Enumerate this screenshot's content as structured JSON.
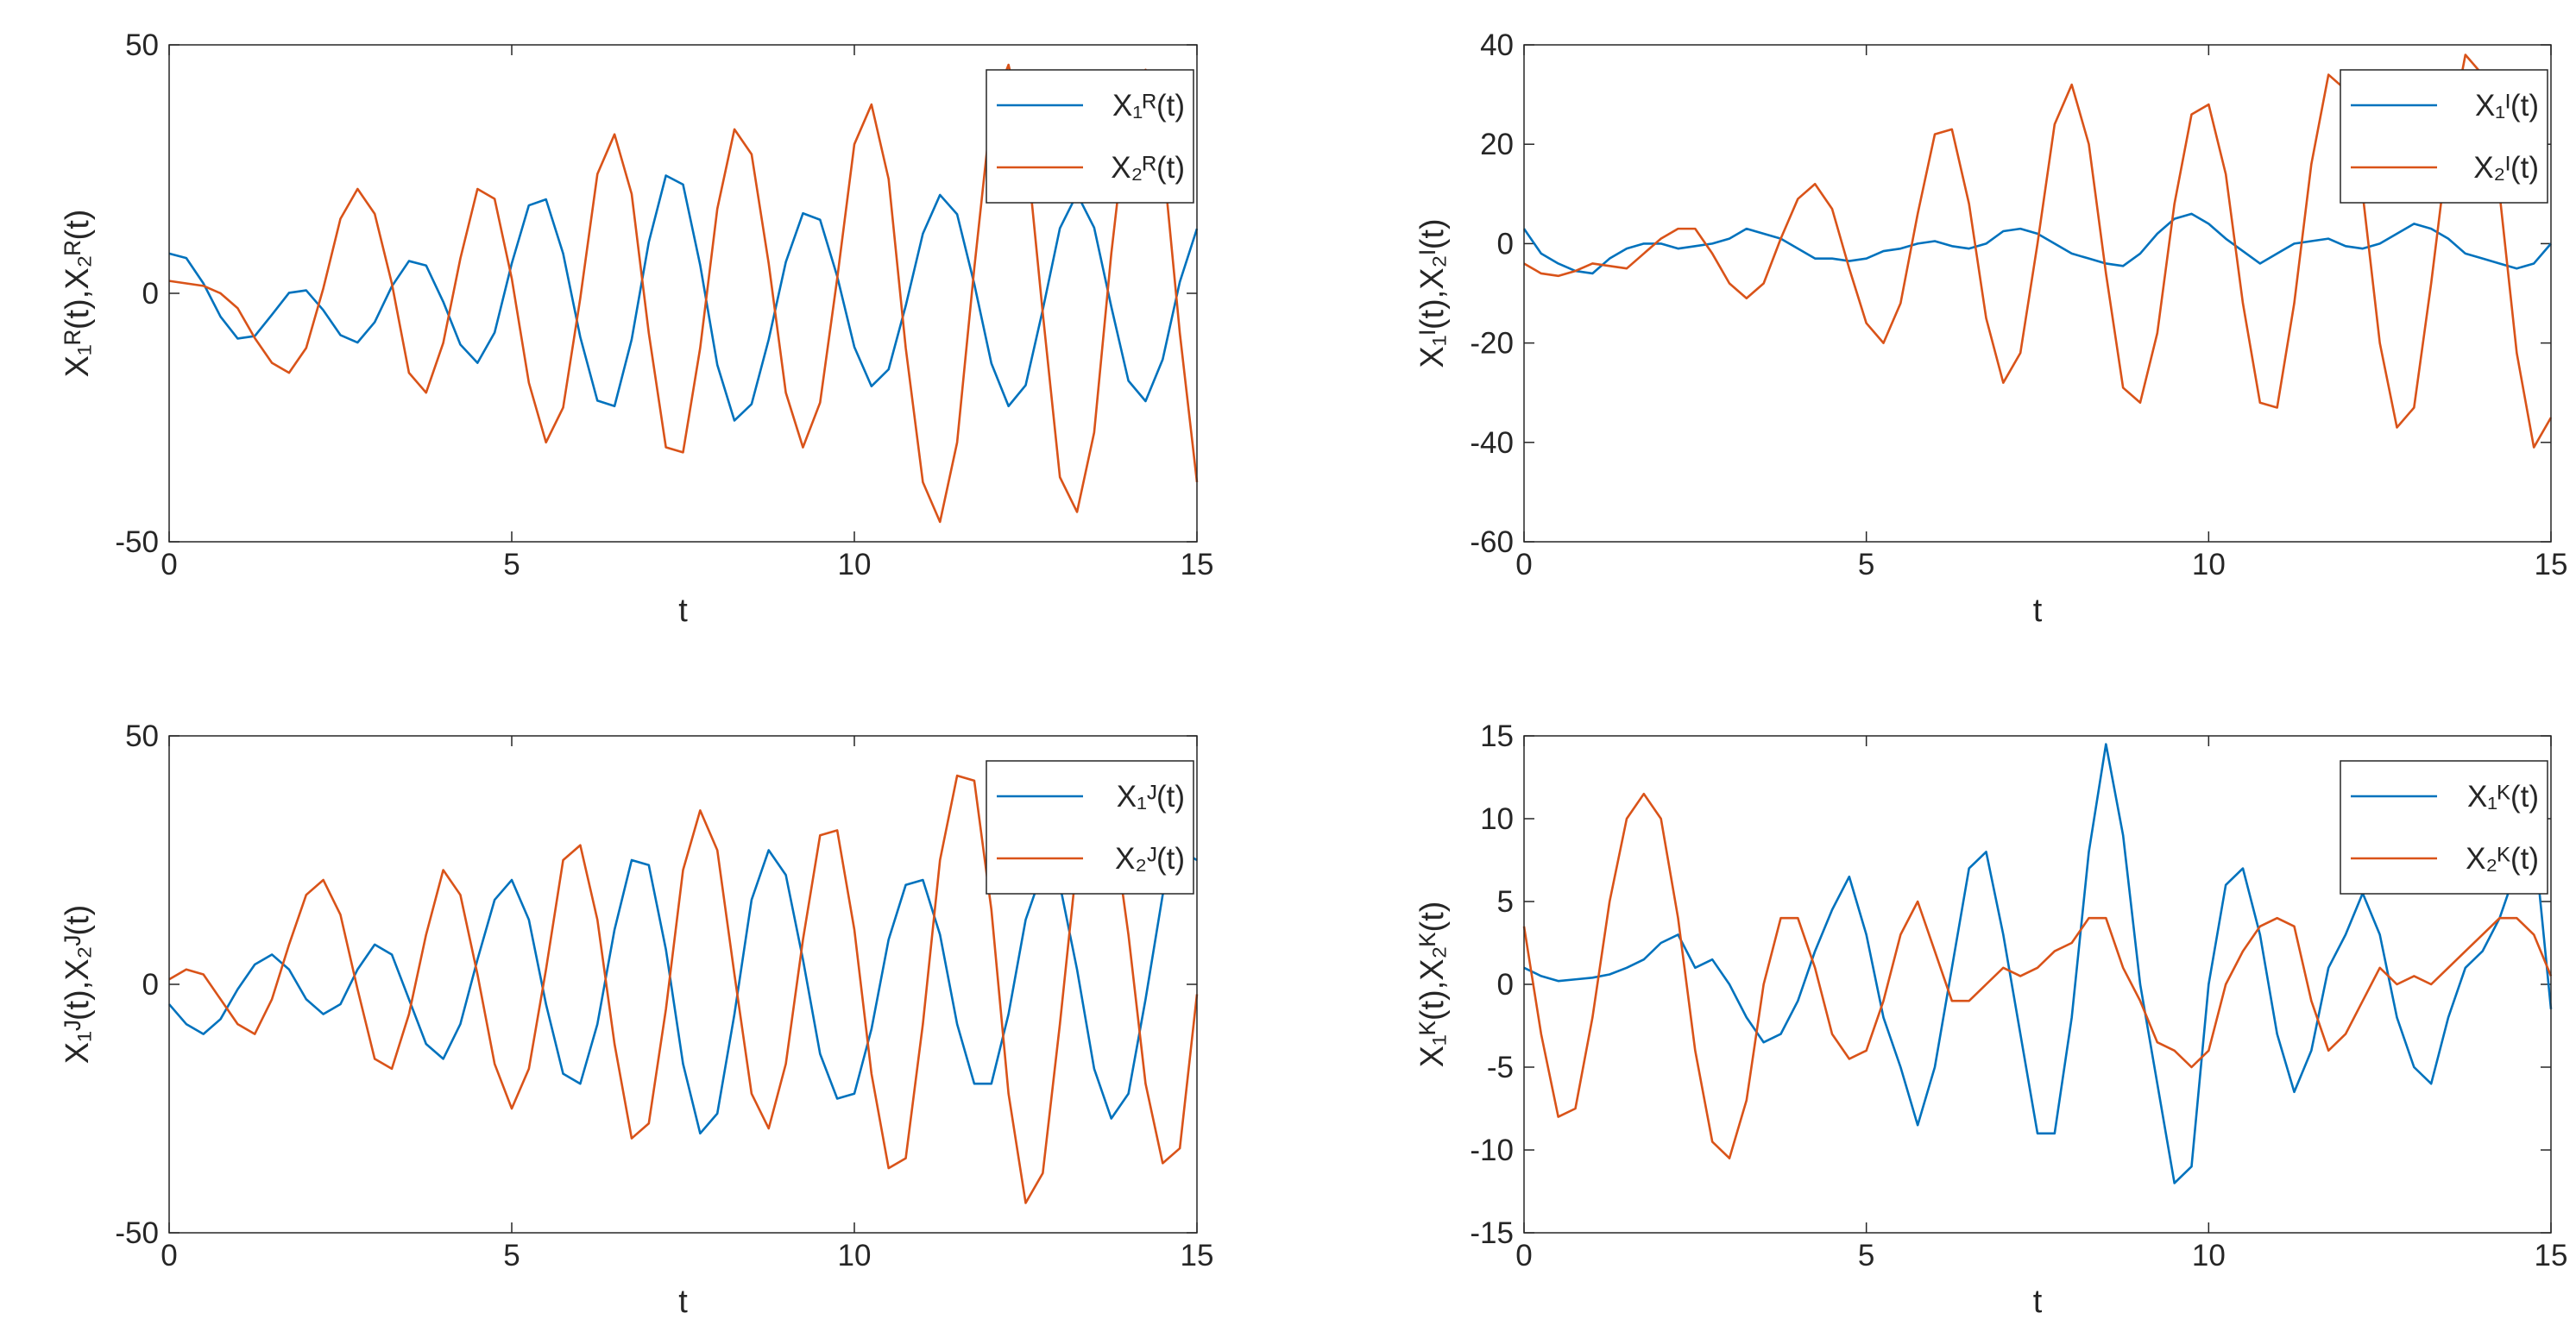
{
  "chart_data": [
    {
      "type": "line",
      "xlabel": "t",
      "ylabel": "X₁ᴿ(t),X₂ᴿ(t)",
      "legend": "upper right",
      "box": true,
      "xlim": [
        0,
        15
      ],
      "xticks": [
        0,
        5,
        10,
        15
      ],
      "ylim": [
        -50,
        50
      ],
      "yticks": [
        -50,
        0,
        50
      ],
      "x": [
        0,
        0.25,
        0.5,
        0.75,
        1,
        1.25,
        1.5,
        1.75,
        2,
        2.25,
        2.5,
        2.75,
        3,
        3.25,
        3.5,
        3.75,
        4,
        4.25,
        4.5,
        4.75,
        5,
        5.25,
        5.5,
        5.75,
        6,
        6.25,
        6.5,
        6.75,
        7,
        7.25,
        7.5,
        7.75,
        8,
        8.25,
        8.5,
        8.75,
        9,
        9.25,
        9.5,
        9.75,
        10,
        10.25,
        10.5,
        10.75,
        11,
        11.25,
        11.5,
        11.75,
        12,
        12.25,
        12.5,
        12.75,
        13,
        13.25,
        13.5,
        13.75,
        14,
        14.25,
        14.5,
        14.75,
        15
      ],
      "series": [
        {
          "name": "X₁ᴿ(t)",
          "color": "#0072BD",
          "values": [
            8,
            7.1,
            2,
            -4.7,
            -9.1,
            -8.6,
            -4.3,
            0.1,
            0.6,
            -3.4,
            -8.4,
            -9.9,
            -5.8,
            1.4,
            6.5,
            5.6,
            -1.7,
            -10.3,
            -14,
            -7.9,
            6,
            17.7,
            18.9,
            8,
            -8.8,
            -21.6,
            -22.7,
            -9.3,
            10.3,
            23.7,
            21.9,
            5.7,
            -14.4,
            -25.6,
            -22.3,
            -9.3,
            6.3,
            16.1,
            14.8,
            3.4,
            -10.8,
            -18.7,
            -15.3,
            -2.5,
            12,
            19.8,
            15.9,
            1.9,
            -14.1,
            -22.7,
            -18.5,
            -3.3,
            13.1,
            20,
            13.2,
            -2.7,
            -17.6,
            -21.7,
            -13.3,
            2.3,
            13
          ]
        },
        {
          "name": "X₂ᴿ(t)",
          "color": "#D95319",
          "values": [
            2.5,
            2,
            1.5,
            0,
            -3,
            -9,
            -14,
            -16,
            -11,
            1,
            15,
            21,
            16,
            2,
            -16,
            -20,
            -10,
            7,
            21,
            19,
            3,
            -18,
            -30,
            -23,
            -1,
            24,
            32,
            20,
            -8,
            -31,
            -32,
            -11,
            17,
            33,
            28,
            6,
            -20,
            -31,
            -22,
            3,
            30,
            38,
            23,
            -11,
            -38,
            -46,
            -30,
            5,
            37,
            46,
            31,
            -4,
            -37,
            -44,
            -28,
            8,
            38,
            45,
            28,
            -8,
            -38
          ]
        }
      ]
    },
    {
      "type": "line",
      "xlabel": "t",
      "ylabel": "X₁ᴵ(t),X₂ᴵ(t)",
      "legend": "upper right",
      "box": true,
      "xlim": [
        0,
        15
      ],
      "xticks": [
        0,
        5,
        10,
        15
      ],
      "ylim": [
        -60,
        40
      ],
      "yticks": [
        -60,
        -40,
        -20,
        0,
        20,
        40
      ],
      "x": [
        0,
        0.25,
        0.5,
        0.75,
        1,
        1.25,
        1.5,
        1.75,
        2,
        2.25,
        2.5,
        2.75,
        3,
        3.25,
        3.5,
        3.75,
        4,
        4.25,
        4.5,
        4.75,
        5,
        5.25,
        5.5,
        5.75,
        6,
        6.25,
        6.5,
        6.75,
        7,
        7.25,
        7.5,
        7.75,
        8,
        8.25,
        8.5,
        8.75,
        9,
        9.25,
        9.5,
        9.75,
        10,
        10.25,
        10.5,
        10.75,
        11,
        11.25,
        11.5,
        11.75,
        12,
        12.25,
        12.5,
        12.75,
        13,
        13.25,
        13.5,
        13.75,
        14,
        14.25,
        14.5,
        14.75,
        15
      ],
      "series": [
        {
          "name": "X₁ᴵ(t)",
          "color": "#0072BD",
          "values": [
            3,
            -2,
            -4,
            -5.5,
            -6,
            -3,
            -1,
            0,
            0,
            -1,
            -0.5,
            0,
            1,
            3,
            2,
            1,
            -1,
            -3,
            -3,
            -3.5,
            -3,
            -1.5,
            -1,
            0,
            0.5,
            -0.5,
            -1,
            0,
            2.5,
            3,
            2,
            0,
            -2,
            -3,
            -4,
            -4.5,
            -2,
            2,
            5,
            6,
            4,
            1,
            -1.5,
            -4,
            -2,
            0,
            0.5,
            1,
            -0.5,
            -1,
            0,
            2,
            4,
            3,
            1,
            -2,
            -3,
            -4,
            -5,
            -4,
            0
          ]
        },
        {
          "name": "X₂ᴵ(t)",
          "color": "#D95319",
          "values": [
            -4,
            -6,
            -6.5,
            -5.5,
            -4,
            -4.5,
            -5,
            -2,
            1,
            3,
            3,
            -2,
            -8,
            -11,
            -8,
            1,
            9,
            12,
            7,
            -5,
            -16,
            -20,
            -12,
            6,
            22,
            23,
            8,
            -15,
            -28,
            -22,
            0,
            24,
            32,
            20,
            -6,
            -29,
            -32,
            -18,
            8,
            26,
            28,
            14,
            -12,
            -32,
            -33,
            -12,
            16,
            34,
            31,
            10,
            -20,
            -37,
            -33,
            -8,
            20,
            38,
            34,
            10,
            -22,
            -41,
            -35
          ]
        }
      ]
    },
    {
      "type": "line",
      "xlabel": "t",
      "ylabel": "X₁ᴶ(t),X₂ᴶ(t)",
      "legend": "upper right",
      "box": true,
      "xlim": [
        0,
        15
      ],
      "xticks": [
        0,
        5,
        10,
        15
      ],
      "ylim": [
        -50,
        50
      ],
      "yticks": [
        -50,
        0,
        50
      ],
      "x": [
        0,
        0.25,
        0.5,
        0.75,
        1,
        1.25,
        1.5,
        1.75,
        2,
        2.25,
        2.5,
        2.75,
        3,
        3.25,
        3.5,
        3.75,
        4,
        4.25,
        4.5,
        4.75,
        5,
        5.25,
        5.5,
        5.75,
        6,
        6.25,
        6.5,
        6.75,
        7,
        7.25,
        7.5,
        7.75,
        8,
        8.25,
        8.5,
        8.75,
        9,
        9.25,
        9.5,
        9.75,
        10,
        10.25,
        10.5,
        10.75,
        11,
        11.25,
        11.5,
        11.75,
        12,
        12.25,
        12.5,
        12.75,
        13,
        13.25,
        13.5,
        13.75,
        14,
        14.25,
        14.5,
        14.75,
        15
      ],
      "series": [
        {
          "name": "X₁ᴶ(t)",
          "color": "#0072BD",
          "values": [
            -4,
            -8,
            -10,
            -7,
            -1,
            4,
            6,
            3,
            -3,
            -6,
            -4,
            3,
            8,
            6,
            -3,
            -12,
            -15,
            -8,
            5,
            17,
            21,
            13,
            -4,
            -18,
            -20,
            -8,
            11,
            25,
            24,
            7,
            -16,
            -30,
            -26,
            -6,
            17,
            27,
            22,
            5,
            -14,
            -23,
            -22,
            -9,
            9,
            20,
            21,
            10,
            -8,
            -20,
            -20,
            -6,
            13,
            23,
            20,
            3,
            -17,
            -27,
            -22,
            -3,
            18,
            27,
            25
          ]
        },
        {
          "name": "X₂ᴶ(t)",
          "color": "#D95319",
          "values": [
            1,
            3,
            2,
            -3,
            -8,
            -10,
            -3,
            8,
            18,
            21,
            14,
            -1,
            -15,
            -17,
            -6,
            10,
            23,
            18,
            2,
            -16,
            -25,
            -17,
            3,
            25,
            28,
            13,
            -12,
            -31,
            -28,
            -5,
            23,
            35,
            27,
            2,
            -22,
            -29,
            -16,
            9,
            30,
            31,
            11,
            -18,
            -37,
            -35,
            -8,
            25,
            42,
            41,
            15,
            -22,
            -44,
            -38,
            -8,
            25,
            40,
            35,
            10,
            -20,
            -36,
            -33,
            -2
          ]
        }
      ]
    },
    {
      "type": "line",
      "xlabel": "t",
      "ylabel": "X₁ᴷ(t),X₂ᴷ(t)",
      "legend": "upper right",
      "box": true,
      "xlim": [
        0,
        15
      ],
      "xticks": [
        0,
        5,
        10,
        15
      ],
      "ylim": [
        -15,
        15
      ],
      "yticks": [
        -15,
        -10,
        -5,
        0,
        5,
        10,
        15
      ],
      "x": [
        0,
        0.25,
        0.5,
        0.75,
        1,
        1.25,
        1.5,
        1.75,
        2,
        2.25,
        2.5,
        2.75,
        3,
        3.25,
        3.5,
        3.75,
        4,
        4.25,
        4.5,
        4.75,
        5,
        5.25,
        5.5,
        5.75,
        6,
        6.25,
        6.5,
        6.75,
        7,
        7.25,
        7.5,
        7.75,
        8,
        8.25,
        8.5,
        8.75,
        9,
        9.25,
        9.5,
        9.75,
        10,
        10.25,
        10.5,
        10.75,
        11,
        11.25,
        11.5,
        11.75,
        12,
        12.25,
        12.5,
        12.75,
        13,
        13.25,
        13.5,
        13.75,
        14,
        14.25,
        14.5,
        14.75,
        15
      ],
      "series": [
        {
          "name": "X₁ᴷ(t)",
          "color": "#0072BD",
          "values": [
            1,
            0.5,
            0.2,
            0.3,
            0.4,
            0.6,
            1,
            1.5,
            2.5,
            3,
            1,
            1.5,
            0,
            -2,
            -3.5,
            -3,
            -1,
            2,
            4.5,
            6.5,
            3,
            -2,
            -5,
            -8.5,
            -5,
            1,
            7,
            8,
            3,
            -3,
            -9,
            -9,
            -2,
            8,
            14.5,
            9,
            0,
            -6,
            -12,
            -11,
            0,
            6,
            7,
            3,
            -3,
            -6.5,
            -4,
            1,
            3,
            5.5,
            3,
            -2,
            -5,
            -6,
            -2,
            1,
            2,
            4,
            7,
            9,
            -1.5
          ]
        },
        {
          "name": "X₂ᴷ(t)",
          "color": "#D95319",
          "values": [
            3.5,
            -3,
            -8,
            -7.5,
            -2,
            5,
            10,
            11.5,
            10,
            4,
            -4,
            -9.5,
            -10.5,
            -7,
            0,
            4,
            4,
            1,
            -3,
            -4.5,
            -4,
            -1,
            3,
            5,
            2,
            -1,
            -1,
            0,
            1,
            0.5,
            1,
            2,
            2.5,
            4,
            4,
            1,
            -1,
            -3.5,
            -4,
            -5,
            -4,
            0,
            2,
            3.5,
            4,
            3.5,
            -1,
            -4,
            -3,
            -1,
            1,
            0,
            0.5,
            0,
            1,
            2,
            3,
            4,
            4,
            3,
            0.5
          ]
        }
      ]
    }
  ]
}
